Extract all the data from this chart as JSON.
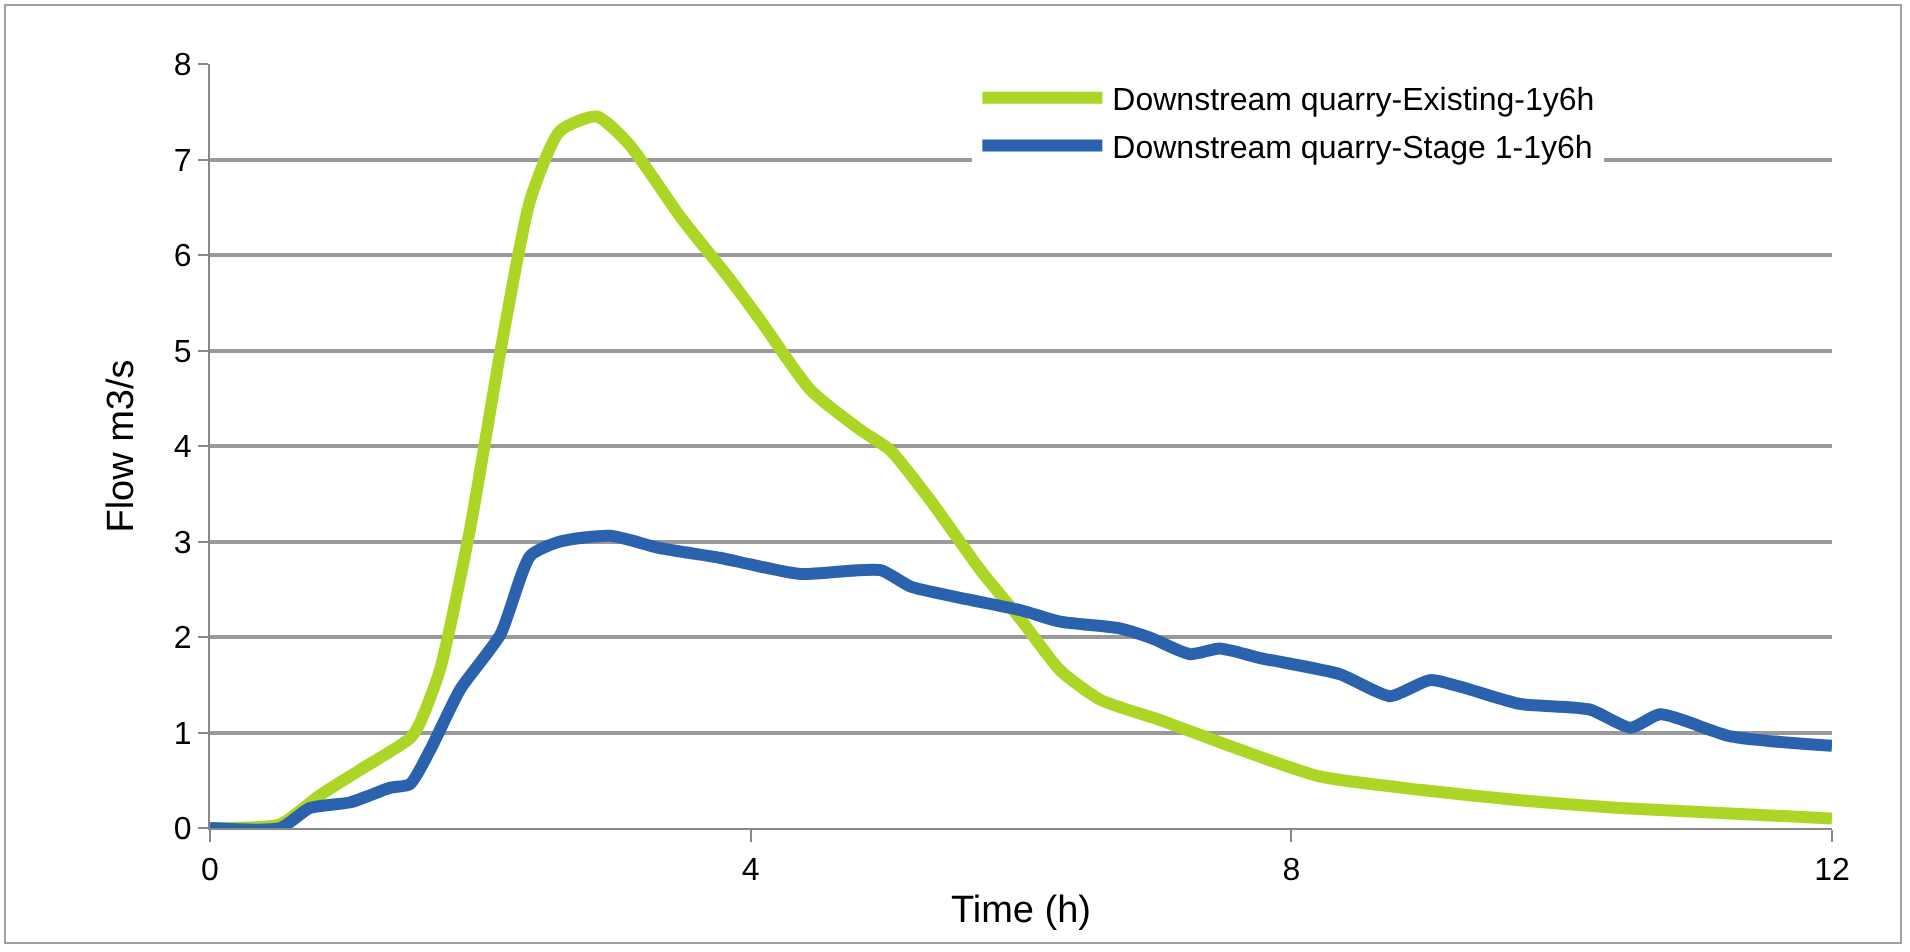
{
  "chart_data": {
    "type": "line",
    "xlabel": "Time (h)",
    "ylabel": "Flow m3/s",
    "xlim": [
      0,
      12
    ],
    "xticks": [
      0,
      4,
      8,
      12
    ],
    "ylim": [
      0,
      8
    ],
    "yticks": [
      0,
      1,
      2,
      3,
      4,
      5,
      6,
      7,
      8
    ],
    "grid": "y",
    "legend": "top right",
    "marker": "none",
    "line_style": "solid",
    "series": [
      {
        "name": "Downstream quarry-Existing-1y6h",
        "color": "#acd626",
        "x": [
          0,
          0.52,
          0.81,
          1.1,
          1.48,
          1.55,
          1.7,
          1.92,
          2.15,
          2.37,
          2.59,
          2.86,
          3.1,
          3.48,
          3.85,
          4.07,
          4.44,
          4.81,
          5.03,
          5.33,
          5.7,
          6.0,
          6.29,
          6.59,
          7.03,
          7.62,
          8.21,
          8.95,
          9.69,
          10.43,
          12
        ],
        "values": [
          0,
          0.04,
          0.34,
          0.6,
          0.94,
          1.09,
          1.65,
          3.1,
          5.0,
          6.58,
          7.3,
          7.45,
          7.16,
          6.4,
          5.74,
          5.32,
          4.59,
          4.17,
          3.96,
          3.43,
          2.7,
          2.18,
          1.65,
          1.34,
          1.13,
          0.82,
          0.54,
          0.4,
          0.29,
          0.21,
          0.1
        ]
      },
      {
        "name": "Downstream quarry-Stage 1-1y6h",
        "color": "#2a62ad",
        "x": [
          0,
          0.52,
          0.74,
          1.04,
          1.33,
          1.48,
          1.63,
          1.85,
          2.15,
          2.37,
          2.59,
          2.96,
          3.33,
          3.77,
          4.0,
          4.37,
          4.96,
          5.18,
          5.55,
          6.0,
          6.29,
          6.73,
          6.96,
          7.25,
          7.47,
          7.77,
          8.36,
          8.73,
          9.03,
          9.32,
          9.69,
          10.21,
          10.51,
          10.73,
          11.25,
          12
        ],
        "values": [
          0,
          0,
          0.21,
          0.27,
          0.42,
          0.46,
          0.82,
          1.45,
          2.03,
          2.85,
          3.0,
          3.06,
          2.93,
          2.83,
          2.76,
          2.66,
          2.7,
          2.53,
          2.41,
          2.28,
          2.16,
          2.09,
          1.99,
          1.82,
          1.88,
          1.78,
          1.61,
          1.38,
          1.55,
          1.45,
          1.3,
          1.24,
          1.05,
          1.19,
          0.96,
          0.86
        ]
      }
    ]
  }
}
